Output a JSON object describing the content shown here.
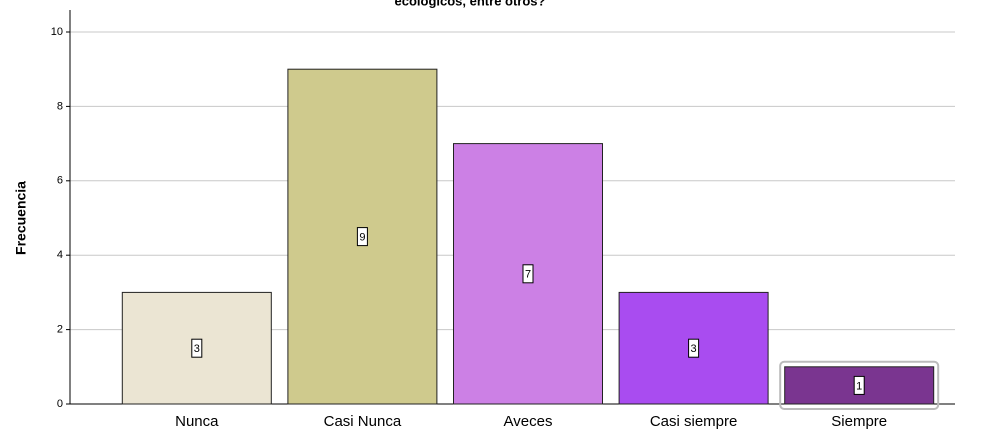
{
  "chart_data": {
    "type": "bar",
    "title": "ecológicos, entre otros?",
    "y_label": "Frecuencia",
    "categories": [
      "Nunca",
      "Casi Nunca",
      "Aveces",
      "Casi siempre",
      "Siempre"
    ],
    "values": [
      3,
      9,
      7,
      3,
      1
    ],
    "colors": [
      "#ebe5d3",
      "#cfca8d",
      "#cc80e5",
      "#a94cf0",
      "#7a3590"
    ],
    "ylim": [
      0,
      10
    ],
    "yticks": [
      0,
      2,
      4,
      6,
      8,
      10
    ],
    "grid": true
  }
}
